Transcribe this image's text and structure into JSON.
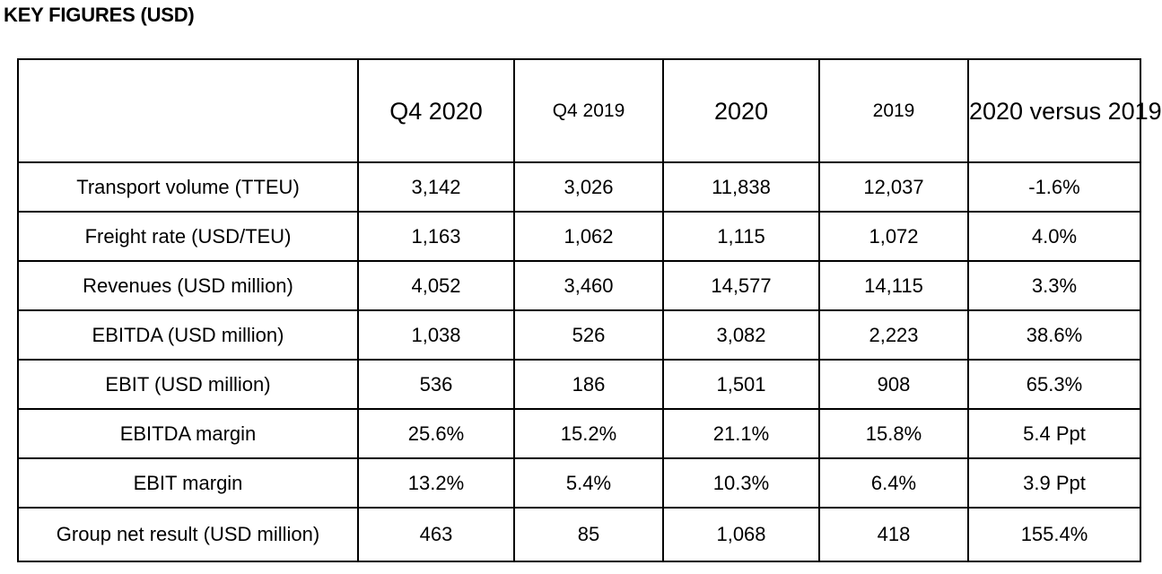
{
  "title": "KEY FIGURES (USD)",
  "table": {
    "headers": [
      "",
      "Q4 2020",
      "Q4 2019",
      "2020",
      "2019",
      "2020 versus 2019"
    ],
    "rows": [
      {
        "label": "Transport volume (TTEU)",
        "values": [
          "3,142",
          "3,026",
          "11,838",
          "12,037",
          "-1.6%"
        ]
      },
      {
        "label": "Freight rate (USD/TEU)",
        "values": [
          "1,163",
          "1,062",
          "1,115",
          "1,072",
          "4.0%"
        ]
      },
      {
        "label": "Revenues (USD million)",
        "values": [
          "4,052",
          "3,460",
          "14,577",
          "14,115",
          "3.3%"
        ]
      },
      {
        "label": "EBITDA (USD million)",
        "values": [
          "1,038",
          "526",
          "3,082",
          "2,223",
          "38.6%"
        ]
      },
      {
        "label": "EBIT (USD million)",
        "values": [
          "536",
          "186",
          "1,501",
          "908",
          "65.3%"
        ]
      },
      {
        "label": "EBITDA margin",
        "values": [
          "25.6%",
          "15.2%",
          "21.1%",
          "15.8%",
          "5.4 Ppt"
        ]
      },
      {
        "label": "EBIT margin",
        "values": [
          "13.2%",
          "5.4%",
          "10.3%",
          "6.4%",
          "3.9 Ppt"
        ]
      },
      {
        "label": "Group net result (USD million)",
        "values": [
          "463",
          "85",
          "1,068",
          "418",
          "155.4%"
        ]
      }
    ]
  }
}
